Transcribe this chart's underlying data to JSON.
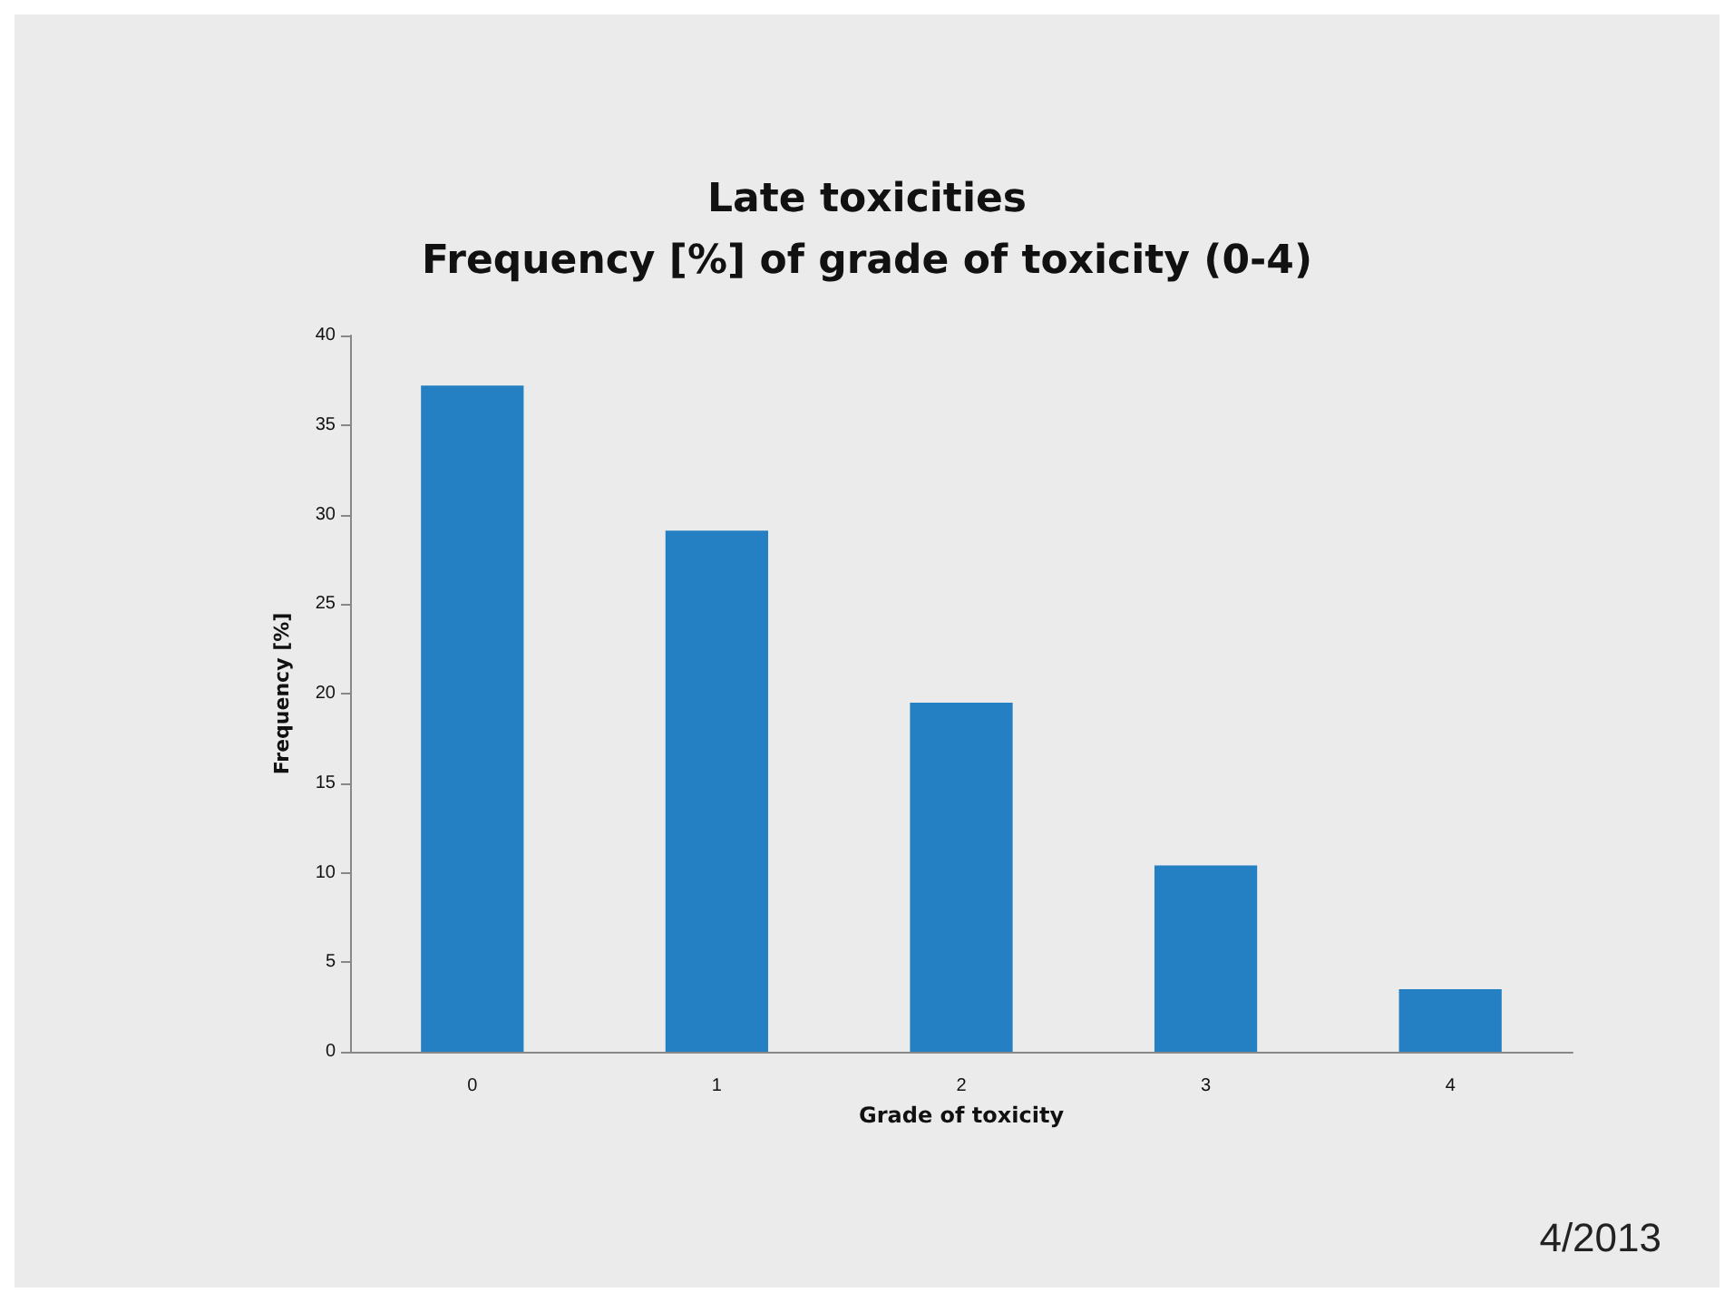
{
  "chart_data": {
    "type": "bar",
    "title": "Late toxicities\nFrequency [%] of grade of toxicity (0-4)",
    "xlabel": "Grade of toxicity",
    "ylabel": "Frequency [%]",
    "categories": [
      "0",
      "1",
      "2",
      "3",
      "4"
    ],
    "values": [
      37.2,
      29.1,
      19.5,
      10.4,
      3.5
    ],
    "color": "#2580c3",
    "ylim": [
      0,
      40
    ],
    "yticks": [
      0,
      5,
      10,
      15,
      20,
      25,
      30,
      35,
      40
    ],
    "grid": false,
    "annotations": [
      "4/2013"
    ]
  }
}
